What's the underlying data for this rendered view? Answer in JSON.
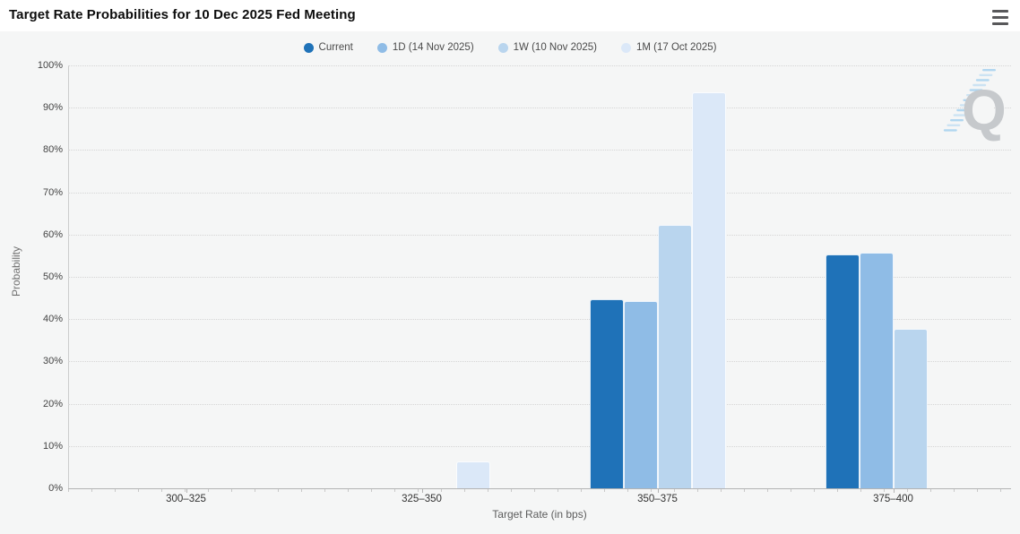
{
  "header": {
    "title": "Target Rate Probabilities for 10 Dec 2025 Fed Meeting"
  },
  "icons": {
    "menu": "hamburger-menu-icon",
    "watermark": "quikstrike-q-logo"
  },
  "chart_data": {
    "type": "bar",
    "title": "Target Rate Probabilities for 10 Dec 2025 Fed Meeting",
    "xlabel": "Target Rate (in bps)",
    "ylabel": "Probability",
    "categories": [
      "300–325",
      "325–350",
      "350–375",
      "375–400"
    ],
    "series": [
      {
        "name": "Current",
        "color": "#1f72b8",
        "values": [
          0,
          0,
          44.7,
          55.3
        ]
      },
      {
        "name": "1D (14 Nov 2025)",
        "color": "#8fbce6",
        "values": [
          0,
          0,
          44.3,
          55.7
        ]
      },
      {
        "name": "1W (10 Nov 2025)",
        "color": "#b9d5ee",
        "values": [
          0,
          0,
          62.2,
          37.8
        ]
      },
      {
        "name": "1M (17 Oct 2025)",
        "color": "#dbe8f8",
        "values": [
          0,
          6.4,
          93.6,
          0
        ]
      }
    ],
    "ylim": [
      0,
      100
    ],
    "ytick_labels": [
      "0%",
      "10%",
      "20%",
      "30%",
      "40%",
      "50%",
      "60%",
      "70%",
      "80%",
      "90%",
      "100%"
    ],
    "grid": "horizontal-dotted",
    "legend_position": "top-center",
    "watermark_letter": "Q"
  }
}
